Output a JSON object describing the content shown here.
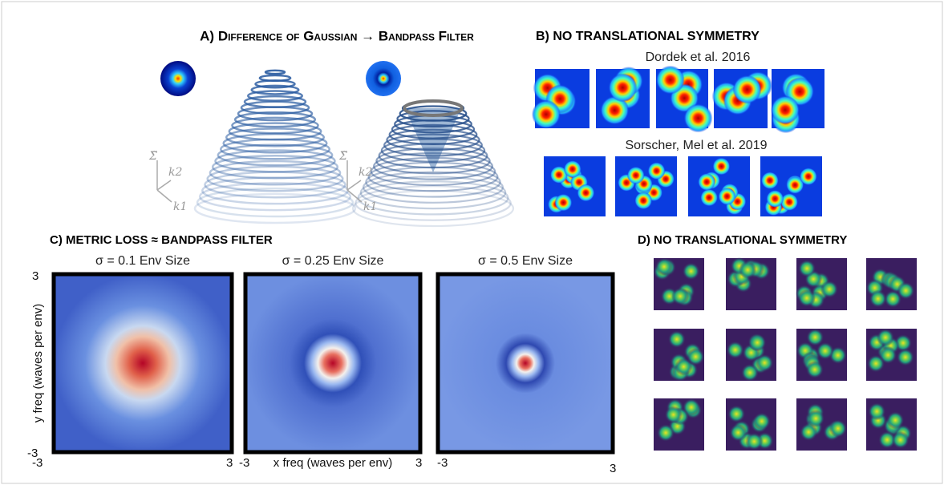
{
  "panel_a": {
    "title": "A) Difference of Gaussian → Bandpass Filter",
    "left_axes": {
      "sigma": "Σ̃",
      "k2": "k2",
      "k1": "k1"
    },
    "right_axes": {
      "sigma": "Σ̃",
      "k2": "k2",
      "k1": "k1"
    }
  },
  "panel_b": {
    "title": "B) NO TRANSLATIONAL SYMMETRY",
    "top_caption": "Dordek et al. 2016",
    "bottom_caption": "Sorscher, Mel et al. 2019"
  },
  "panel_c": {
    "title": "C) METRIC LOSS ≈ BANDPASS FILTER",
    "plots": [
      {
        "subtitle": "σ = 0.1 Env Size",
        "x_min": "-3",
        "x_max": "3",
        "y_max": "3",
        "y_min": "-3"
      },
      {
        "subtitle": "σ = 0.25 Env Size",
        "x_min": "-3",
        "x_max": "3"
      },
      {
        "subtitle": "σ = 0.5 Env Size",
        "x_min": "-3",
        "x_max": "3"
      }
    ],
    "y_label": "y freq (waves per env)",
    "x_label": "x freq (waves per env)"
  },
  "panel_d": {
    "title": "D) NO TRANSLATIONAL SYMMETRY"
  }
}
